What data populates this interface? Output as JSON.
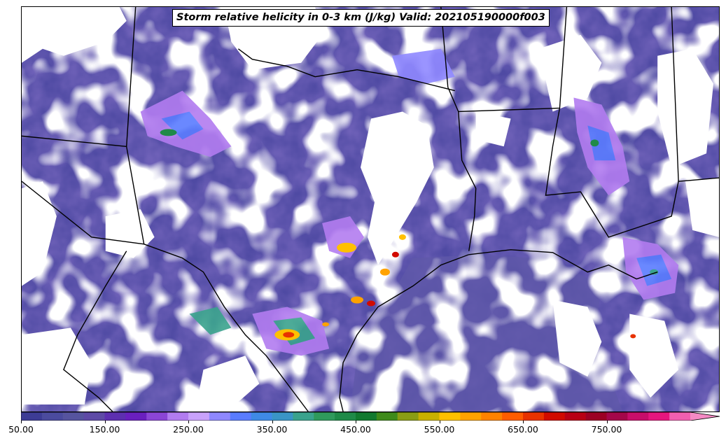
{
  "title": "Storm relative helicity in 0-3 km (J/kg) Valid: 202105190000f003",
  "colorbar": {
    "min": 50,
    "max": 850,
    "step": 25,
    "extend": "max",
    "tick_labels": [
      "50.00",
      "150.00",
      "250.00",
      "350.00",
      "450.00",
      "550.00",
      "650.00",
      "750.00"
    ],
    "tick_values": [
      50,
      150,
      250,
      350,
      450,
      550,
      650,
      750
    ],
    "colors": [
      "#3d3c95",
      "#4b4b9e",
      "#56549f",
      "#5e4aa6",
      "#5d2fb0",
      "#6a1fbf",
      "#8b45d6",
      "#b27cf0",
      "#c9a2fb",
      "#8f88ff",
      "#5a7cff",
      "#3f8ae6",
      "#3a95c6",
      "#3aa38d",
      "#2f9a5c",
      "#1f8a48",
      "#127a2f",
      "#3f8b1a",
      "#8a9d14",
      "#c9b000",
      "#ffc000",
      "#ffa200",
      "#ff8200",
      "#ff5c00",
      "#e83200",
      "#d10a00",
      "#b80014",
      "#9c0024",
      "#a4064a",
      "#c80d6a",
      "#e6167e",
      "#f25fb0",
      "#f58ac4"
    ]
  },
  "chart_data": {
    "type": "heatmap",
    "title": "Storm relative helicity in 0-3 km (J/kg) Valid: 202105190000f003",
    "units": "J/kg",
    "levels_min": 50,
    "levels_max": 850,
    "level_step": 25,
    "extend": "max",
    "colorbar_ticks": [
      50,
      150,
      250,
      350,
      450,
      550,
      650,
      750
    ]
  }
}
